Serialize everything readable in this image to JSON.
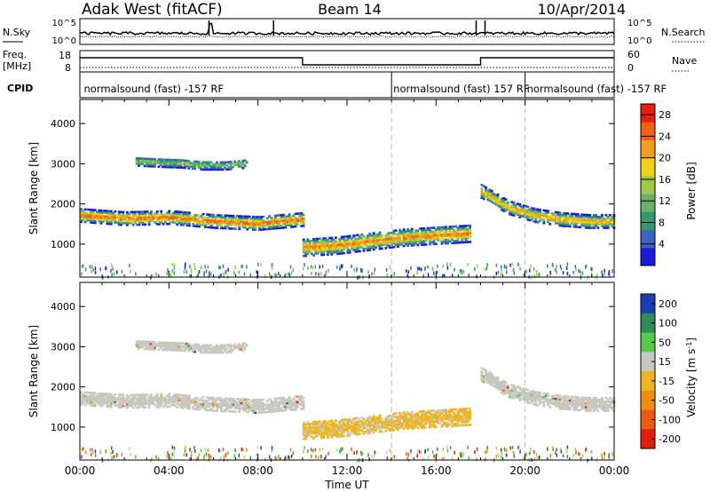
{
  "header": {
    "station": "Adak West (fitACF)",
    "beam": "Beam 14",
    "date": "10/Apr/2014"
  },
  "strip_labels": {
    "nsky": "N.Sky",
    "nsearch": "N.Search",
    "freq_line1": "Freq.",
    "freq_line2": "[MHz]",
    "nave": "Nave",
    "cpid": "CPID",
    "noise_ticks": [
      "10^5",
      "10^0"
    ],
    "freq_ticks": [
      "18",
      "8"
    ],
    "nave_ticks": [
      "60",
      "0"
    ]
  },
  "cpid_labels": [
    {
      "hour": 0.1,
      "text": "normalsound (fast) -157 RF"
    },
    {
      "hour": 14.0,
      "text": "normalsound (fast) 157 RF"
    },
    {
      "hour": 20.0,
      "text": "normalsound (fast) -157 RF"
    }
  ],
  "axes": {
    "xlabel": "Time UT",
    "ylabel": "Slant Range [km]",
    "x_ticks": [
      "00:00",
      "04:00",
      "08:00",
      "12:00",
      "16:00",
      "20:00",
      "00:00"
    ],
    "y_ticks": [
      "1000",
      "2000",
      "3000",
      "4000"
    ]
  },
  "chart_data": [
    {
      "type": "heatmap",
      "panel": "power",
      "xlim_hours": [
        0,
        24
      ],
      "ylim_km": [
        180,
        4600
      ],
      "colorbar": {
        "label": "Power [dB]",
        "ticks": [
          "4",
          "8",
          "12",
          "16",
          "20",
          "24",
          "28"
        ],
        "range": [
          0,
          30
        ],
        "colors": [
          "#1a1adc",
          "#3c64be",
          "#329a6e",
          "#6cb06c",
          "#a0c846",
          "#f0d21e",
          "#f0a01e",
          "#ee6414",
          "#e61e0a"
        ]
      },
      "echo_bands": [
        {
          "name": "near-range band",
          "hours": [
            0.0,
            10.0
          ],
          "center_km": [
            1700,
            1620,
            1650,
            1550,
            1500,
            1600
          ],
          "width_km": 320,
          "peak_db": 28
        },
        {
          "name": "upper band",
          "hours": [
            2.5,
            7.5
          ],
          "center_km": [
            3050,
            3020,
            3000,
            2950,
            2950,
            3000
          ],
          "width_km": 220,
          "peak_db": 14
        },
        {
          "name": "daytime band",
          "hours": [
            10.0,
            17.5
          ],
          "center_km": [
            900,
            950,
            1050,
            1150,
            1200,
            1250
          ],
          "width_km": 420,
          "peak_db": 26
        },
        {
          "name": "evening band",
          "hours": [
            18.0,
            24.0
          ],
          "center_km": [
            2300,
            1900,
            1700,
            1600,
            1550,
            1550
          ],
          "width_km": 320,
          "peak_db": 24
        }
      ]
    },
    {
      "type": "heatmap",
      "panel": "velocity",
      "xlim_hours": [
        0,
        24
      ],
      "ylim_km": [
        180,
        4600
      ],
      "colorbar": {
        "label": "Velocity [m s^-1]",
        "ticks": [
          "200",
          "100",
          "50",
          "15",
          "-15",
          "-50",
          "-100",
          "-200"
        ],
        "colors": [
          "#1e3cb4",
          "#2e8b57",
          "#56c84a",
          "#c8c8c0",
          "#f0b41e",
          "#f08c14",
          "#ec5a14",
          "#e11e0a"
        ]
      },
      "dominant_velocity": {
        "night_ms": 0,
        "daytime_ms": -50
      }
    }
  ]
}
